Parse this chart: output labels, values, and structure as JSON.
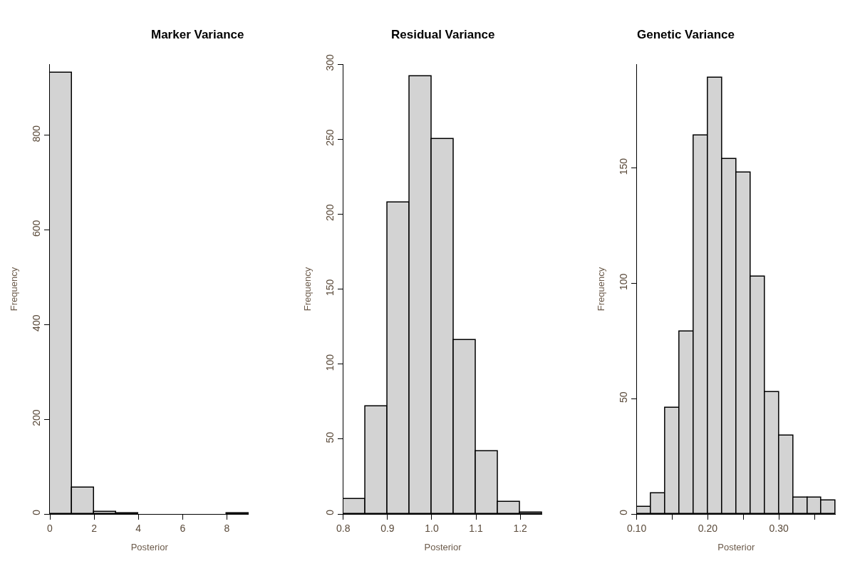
{
  "chart_data": [
    {
      "type": "histogram",
      "title": "Marker Variance",
      "xlabel": "Posterior",
      "ylabel": "Frequency",
      "bins": [
        0,
        1,
        2,
        3,
        4,
        5,
        6,
        7,
        8,
        9
      ],
      "values": [
        932,
        56,
        4,
        1,
        0,
        0,
        0,
        0,
        1
      ],
      "color": "#d3d3d3",
      "xlim": [
        0,
        9
      ],
      "xticks": [
        0,
        2,
        4,
        6,
        8
      ],
      "ylim": [
        0,
        950
      ],
      "yticks": [
        0,
        200,
        400,
        600,
        800
      ]
    },
    {
      "type": "histogram",
      "title": "Residual Variance",
      "xlabel": "Posterior",
      "ylabel": "Frequency",
      "bins": [
        0.8,
        0.85,
        0.9,
        0.95,
        1.0,
        1.05,
        1.1,
        1.15,
        1.2,
        1.25
      ],
      "values": [
        10,
        72,
        208,
        292,
        250,
        116,
        42,
        8,
        1
      ],
      "color": "#d3d3d3",
      "xlim": [
        0.8,
        1.25
      ],
      "xticks": [
        {
          "value": 0.8,
          "label": "0.8"
        },
        {
          "value": 0.9,
          "label": "0.9"
        },
        {
          "value": 1.0,
          "label": "1.0"
        },
        {
          "value": 1.1,
          "label": "1.1"
        },
        {
          "value": 1.2,
          "label": "1.2"
        }
      ],
      "ylim": [
        0,
        300
      ],
      "yticks": [
        0,
        50,
        100,
        150,
        200,
        250,
        300
      ]
    },
    {
      "type": "histogram",
      "title": "Genetic Variance",
      "xlabel": "Posterior",
      "ylabel": "Frequency",
      "bins": [
        0.1,
        0.12,
        0.14,
        0.16,
        0.18,
        0.2,
        0.22,
        0.24,
        0.26,
        0.28,
        0.3,
        0.32,
        0.34,
        0.36,
        0.38
      ],
      "values": [
        3,
        9,
        46,
        79,
        164,
        189,
        154,
        148,
        103,
        53,
        34,
        7,
        7,
        6
      ],
      "color": "#d3d3d3",
      "xlim": [
        0.1,
        0.38
      ],
      "xticks": [
        {
          "value": 0.1,
          "label": "0.10"
        },
        {
          "value": 0.15,
          "label": null
        },
        {
          "value": 0.2,
          "label": "0.20"
        },
        {
          "value": 0.25,
          "label": null
        },
        {
          "value": 0.3,
          "label": "0.30"
        },
        {
          "value": 0.35,
          "label": null
        }
      ],
      "ylim": [
        0,
        195
      ],
      "yticks": [
        0,
        50,
        100,
        150
      ]
    }
  ]
}
